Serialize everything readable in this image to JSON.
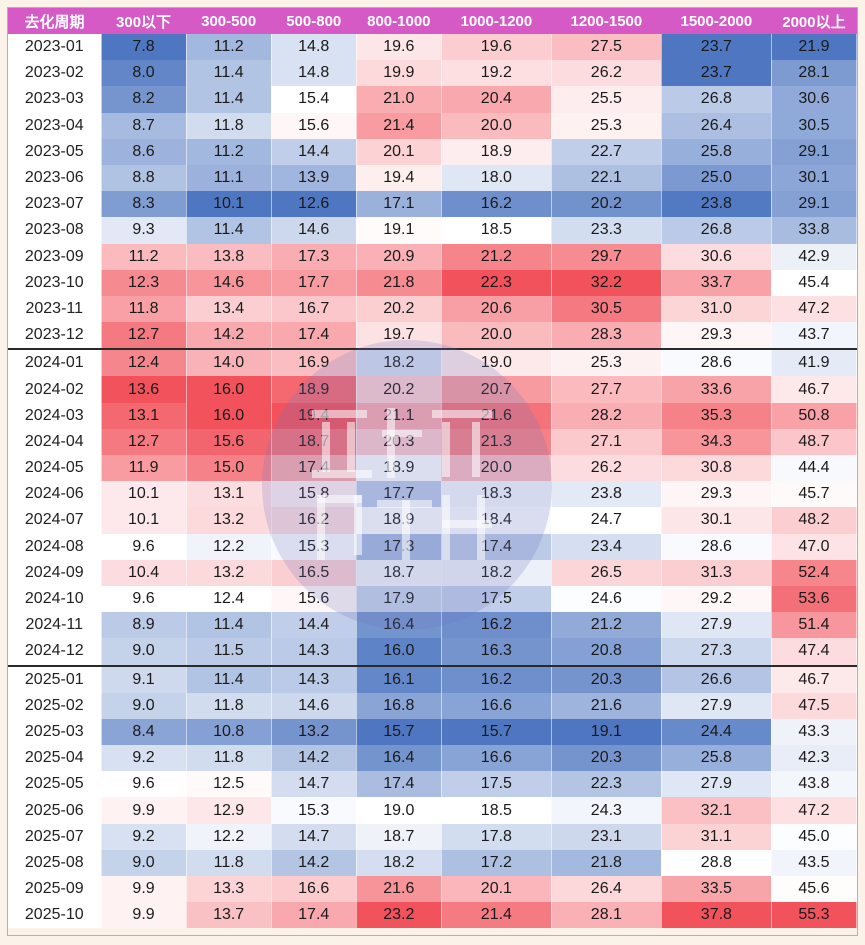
{
  "chart_data": {
    "type": "heatmap",
    "title": "",
    "row_header_label": "去化周期",
    "columns": [
      "300以下",
      "300-500",
      "500-800",
      "800-1000",
      "1000-1200",
      "1200-1500",
      "1500-2000",
      "2000以上"
    ],
    "rows": [
      {
        "month": "2023-01",
        "values": [
          "7.8",
          "11.2",
          "14.8",
          "19.6",
          "19.6",
          "27.5",
          "23.7",
          "21.9"
        ]
      },
      {
        "month": "2023-02",
        "values": [
          "8.0",
          "11.4",
          "14.8",
          "19.9",
          "19.2",
          "26.2",
          "23.7",
          "28.1"
        ]
      },
      {
        "month": "2023-03",
        "values": [
          "8.2",
          "11.4",
          "15.4",
          "21.0",
          "20.4",
          "25.5",
          "26.8",
          "30.6"
        ]
      },
      {
        "month": "2023-04",
        "values": [
          "8.7",
          "11.8",
          "15.6",
          "21.4",
          "20.0",
          "25.3",
          "26.4",
          "30.5"
        ]
      },
      {
        "month": "2023-05",
        "values": [
          "8.6",
          "11.2",
          "14.4",
          "20.1",
          "18.9",
          "22.7",
          "25.8",
          "29.1"
        ]
      },
      {
        "month": "2023-06",
        "values": [
          "8.8",
          "11.1",
          "13.9",
          "19.4",
          "18.0",
          "22.1",
          "25.0",
          "30.1"
        ]
      },
      {
        "month": "2023-07",
        "values": [
          "8.3",
          "10.1",
          "12.6",
          "17.1",
          "16.2",
          "20.2",
          "23.8",
          "29.1"
        ]
      },
      {
        "month": "2023-08",
        "values": [
          "9.3",
          "11.4",
          "14.6",
          "19.1",
          "18.5",
          "23.3",
          "26.8",
          "33.8"
        ]
      },
      {
        "month": "2023-09",
        "values": [
          "11.2",
          "13.8",
          "17.3",
          "20.9",
          "21.2",
          "29.7",
          "30.6",
          "42.9"
        ]
      },
      {
        "month": "2023-10",
        "values": [
          "12.3",
          "14.6",
          "17.7",
          "21.8",
          "22.3",
          "32.2",
          "33.7",
          "45.4"
        ]
      },
      {
        "month": "2023-11",
        "values": [
          "11.8",
          "13.4",
          "16.7",
          "20.2",
          "20.6",
          "30.5",
          "31.0",
          "47.2"
        ]
      },
      {
        "month": "2023-12",
        "values": [
          "12.7",
          "14.2",
          "17.4",
          "19.7",
          "20.0",
          "28.3",
          "29.3",
          "43.7"
        ]
      },
      {
        "month": "2024-01",
        "values": [
          "12.4",
          "14.0",
          "16.9",
          "18.2",
          "19.0",
          "25.3",
          "28.6",
          "41.9"
        ]
      },
      {
        "month": "2024-02",
        "values": [
          "13.6",
          "16.0",
          "18.9",
          "20.2",
          "20.7",
          "27.7",
          "33.6",
          "46.7"
        ]
      },
      {
        "month": "2024-03",
        "values": [
          "13.1",
          "16.0",
          "19.4",
          "21.1",
          "21.6",
          "28.2",
          "35.3",
          "50.8"
        ]
      },
      {
        "month": "2024-04",
        "values": [
          "12.7",
          "15.6",
          "18.7",
          "20.3",
          "21.3",
          "27.1",
          "34.3",
          "48.7"
        ]
      },
      {
        "month": "2024-05",
        "values": [
          "11.9",
          "15.0",
          "17.4",
          "18.9",
          "20.0",
          "26.2",
          "30.8",
          "44.4"
        ]
      },
      {
        "month": "2024-06",
        "values": [
          "10.1",
          "13.1",
          "15.8",
          "17.7",
          "18.3",
          "23.8",
          "29.3",
          "45.7"
        ]
      },
      {
        "month": "2024-07",
        "values": [
          "10.1",
          "13.2",
          "16.2",
          "18.9",
          "18.4",
          "24.7",
          "30.1",
          "48.2"
        ]
      },
      {
        "month": "2024-08",
        "values": [
          "9.6",
          "12.2",
          "15.3",
          "17.3",
          "17.4",
          "23.4",
          "28.6",
          "47.0"
        ]
      },
      {
        "month": "2024-09",
        "values": [
          "10.4",
          "13.2",
          "16.5",
          "18.7",
          "18.2",
          "26.5",
          "31.3",
          "52.4"
        ]
      },
      {
        "month": "2024-10",
        "values": [
          "9.6",
          "12.4",
          "15.6",
          "17.9",
          "17.5",
          "24.6",
          "29.2",
          "53.6"
        ]
      },
      {
        "month": "2024-11",
        "values": [
          "8.9",
          "11.4",
          "14.4",
          "16.4",
          "16.2",
          "21.2",
          "27.9",
          "51.4"
        ]
      },
      {
        "month": "2024-12",
        "values": [
          "9.0",
          "11.5",
          "14.3",
          "16.0",
          "16.3",
          "20.8",
          "27.3",
          "47.4"
        ]
      },
      {
        "month": "2025-01",
        "values": [
          "9.1",
          "11.4",
          "14.3",
          "16.1",
          "16.2",
          "20.3",
          "26.6",
          "46.7"
        ]
      },
      {
        "month": "2025-02",
        "values": [
          "9.0",
          "11.8",
          "14.6",
          "16.8",
          "16.6",
          "21.6",
          "27.9",
          "47.5"
        ]
      },
      {
        "month": "2025-03",
        "values": [
          "8.4",
          "10.8",
          "13.2",
          "15.7",
          "15.7",
          "19.1",
          "24.4",
          "43.3"
        ]
      },
      {
        "month": "2025-04",
        "values": [
          "9.2",
          "11.8",
          "14.2",
          "16.4",
          "16.6",
          "20.3",
          "25.8",
          "42.3"
        ]
      },
      {
        "month": "2025-05",
        "values": [
          "9.6",
          "12.5",
          "14.7",
          "17.4",
          "17.5",
          "22.3",
          "27.9",
          "43.8"
        ]
      },
      {
        "month": "2025-06",
        "values": [
          "9.9",
          "12.9",
          "15.3",
          "19.0",
          "18.5",
          "24.3",
          "32.1",
          "47.2"
        ]
      },
      {
        "month": "2025-07",
        "values": [
          "9.2",
          "12.2",
          "14.7",
          "18.7",
          "17.8",
          "23.1",
          "31.1",
          "45.0"
        ]
      },
      {
        "month": "2025-08",
        "values": [
          "9.0",
          "11.8",
          "14.2",
          "18.2",
          "17.2",
          "21.8",
          "28.8",
          "43.5"
        ]
      },
      {
        "month": "2025-09",
        "values": [
          "9.9",
          "13.3",
          "16.6",
          "21.6",
          "20.1",
          "26.4",
          "33.5",
          "45.6"
        ]
      },
      {
        "month": "2025-10",
        "values": [
          "9.9",
          "13.7",
          "17.4",
          "23.2",
          "21.4",
          "28.1",
          "37.8",
          "55.3"
        ]
      }
    ],
    "color_scale": {
      "low": "#4f77c1",
      "mid": "#ffffff",
      "high": "#f2525c"
    }
  }
}
